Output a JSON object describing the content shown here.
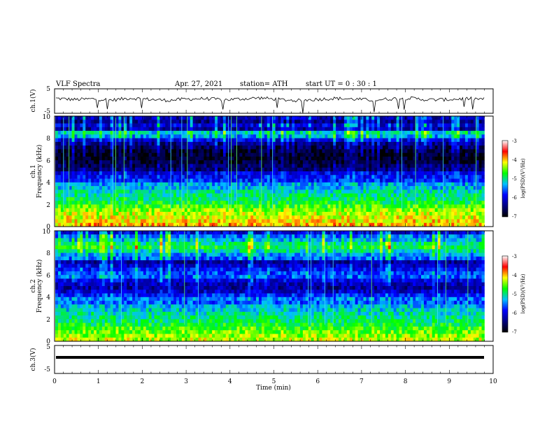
{
  "header": {
    "title": "VLF  Spectra",
    "date": "Apr. 27, 2021",
    "station": "station= ATH",
    "start": "start  UT  =    0  : 30 : 1"
  },
  "colorbar": {
    "label": "log(PSD)(V²/Hz)",
    "ticks": [
      "-3",
      "-4",
      "-5",
      "-6",
      "-7"
    ],
    "colors": [
      "#ffffff",
      "#ff0000",
      "#ffff00",
      "#00ff00",
      "#00c0ff",
      "#0000ff",
      "#000080",
      "#000000"
    ]
  },
  "chart_data": [
    {
      "type": "line",
      "ylabel": "ch.1(V)",
      "ylim": [
        -5,
        5
      ],
      "yticks": [
        "5",
        "-5"
      ],
      "xlim": [
        0,
        10
      ],
      "series": [
        {
          "values": [
            1.1,
            0.6,
            0.9,
            0.4,
            1.2,
            0.7,
            0.3,
            0.8,
            1.0,
            0.5,
            0.9,
            1.3,
            0.6,
            0.2,
            0.7,
            1.1,
            0.8,
            0.4,
            0.9,
            1.2,
            0.5,
            0.6,
            1.0,
            0.8
          ]
        }
      ]
    },
    {
      "type": "heatmap",
      "ylabel": "ch.1",
      "ylabel2": "Frequency  (kHz)",
      "ylim": [
        0,
        10
      ],
      "yticks": [
        "10",
        "8",
        "6",
        "4",
        "2",
        "0"
      ],
      "xlim": [
        0,
        9.8
      ],
      "zlim": [
        -7,
        -3
      ],
      "profile": [
        -6.2,
        -6.4,
        -6.0,
        -6.3,
        -5.2,
        -5.4,
        -6.0,
        -6.4,
        -6.6,
        -6.8,
        -6.9,
        -6.9,
        -6.8,
        -6.6,
        -6.5,
        -6.0,
        -5.9,
        -5.8,
        -5.4,
        -5.3,
        -5.1,
        -5.0,
        -4.9,
        -4.8,
        -4.6,
        -4.4,
        -4.3,
        -4.2,
        -4.1,
        -4.0
      ]
    },
    {
      "type": "heatmap",
      "ylabel": "ch.2",
      "ylabel2": "Frequency  (kHz)",
      "ylim": [
        0,
        10
      ],
      "yticks": [
        "10",
        "8",
        "6",
        "4",
        "2",
        "0"
      ],
      "xlim": [
        0,
        9.8
      ],
      "zlim": [
        -7,
        -3
      ],
      "profile": [
        -6.0,
        -5.5,
        -5.3,
        -5.0,
        -4.8,
        -5.1,
        -5.4,
        -5.6,
        -6.3,
        -6.1,
        -5.9,
        -5.7,
        -5.6,
        -6.0,
        -6.2,
        -6.3,
        -6.1,
        -5.8,
        -5.5,
        -5.6,
        -5.3,
        -5.2,
        -5.1,
        -5.0,
        -4.9,
        -4.8,
        -4.6,
        -4.5,
        -4.4,
        -4.3
      ]
    },
    {
      "type": "line",
      "ylabel": "ch.3(V)",
      "ylim": [
        -5,
        5
      ],
      "yticks": [
        "5",
        "-5"
      ],
      "xlim": [
        0,
        10
      ],
      "xlabel": "Time  (min)",
      "xticks": [
        "0",
        "1",
        "2",
        "3",
        "4",
        "5",
        "6",
        "7",
        "8",
        "9",
        "10"
      ],
      "series": [
        {
          "values": [
            0,
            0
          ]
        }
      ]
    }
  ]
}
